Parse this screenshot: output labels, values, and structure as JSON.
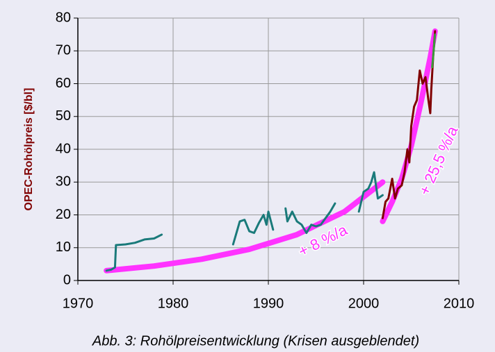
{
  "chart_data": {
    "type": "line",
    "y_label": "OPEC-Rohölpreis [$/bl]",
    "caption": "Abb. 3: Rohölpreisentwicklung (Krisen ausgeblendet)",
    "annotations": [
      "+ 8 %/a",
      "+ 25,5 %/a"
    ],
    "xlim": [
      1970,
      2010
    ],
    "xticks": [
      1970,
      1980,
      1990,
      2000,
      2010
    ],
    "ylim": [
      0,
      80
    ],
    "yticks": [
      0,
      10,
      20,
      30,
      40,
      50,
      60,
      70,
      80
    ],
    "grid": true,
    "series": [
      {
        "color": "#ff33ff",
        "line_width": 8,
        "x": [
          1973,
          1978,
          1983,
          1988,
          1993,
          1998,
          2002
        ],
        "values": [
          3,
          4.4,
          6.5,
          9.5,
          14,
          21,
          30
        ]
      },
      {
        "color": "#ff33ff",
        "line_width": 8,
        "x": [
          2002,
          2003,
          2004,
          2005,
          2006,
          2007,
          2007.5
        ],
        "values": [
          18,
          24,
          31,
          41,
          54,
          68,
          76
        ]
      },
      {
        "color": "#1a7a7a",
        "line_width": 3,
        "x": [
          1973,
          1973.5,
          1973.9,
          1974,
          1975,
          1976,
          1977,
          1978,
          1978.8,
          null,
          1986.3,
          1986.6,
          1987,
          1987.5,
          1988,
          1988.5,
          1989,
          1989.5,
          1989.8,
          1990,
          1990.5,
          null,
          1991.8,
          1992,
          1992.5,
          1993,
          1993.5,
          1994,
          1994.5,
          1995,
          1995.5,
          1996,
          1996.5,
          1997,
          null,
          1999.5,
          2000,
          2000.5,
          2000.8,
          2001.1,
          2001.5,
          2002
        ],
        "values": [
          3,
          3.3,
          4,
          10.8,
          11,
          11.5,
          12.5,
          12.8,
          14,
          null,
          11,
          14,
          18,
          18.5,
          15,
          14.5,
          17.5,
          20,
          17,
          21,
          15.5,
          null,
          22,
          18,
          21,
          18,
          17,
          14.5,
          17,
          16.5,
          17,
          19,
          21,
          23.5,
          null,
          21,
          27,
          28,
          30,
          33,
          25,
          26
        ]
      },
      {
        "color": "#800000",
        "line_width": 3,
        "x": [
          2002,
          2002.3,
          2002.6,
          2003,
          2003.3,
          2003.6,
          2004,
          2004.3,
          2004.6,
          2004.8,
          2005,
          2005.3,
          2005.6,
          2005.9,
          2006.2,
          2006.5,
          2006.8,
          2007,
          2007.1,
          2007.3,
          2007.5
        ],
        "values": [
          19,
          24,
          25,
          31,
          25,
          28,
          29,
          33,
          40,
          36,
          47,
          53,
          55,
          64,
          60,
          62,
          55,
          51,
          58,
          68,
          76
        ]
      },
      {
        "color": "#3a9a3a",
        "line_width": 3,
        "x": [
          2007.2,
          2007.5
        ],
        "values": [
          65,
          75
        ]
      }
    ]
  }
}
